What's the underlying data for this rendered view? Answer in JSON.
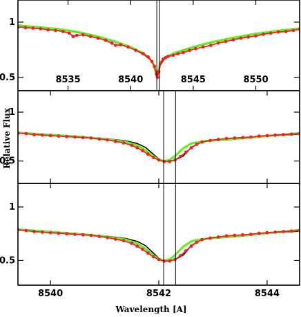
{
  "chart_data": [
    {
      "type": "line",
      "panel": "top",
      "xlim": [
        8531.0,
        8553.5
      ],
      "ylim": [
        0.38,
        1.2
      ],
      "xticks": [
        8535,
        8540,
        8545,
        8550
      ],
      "yticks": [
        0.5,
        1
      ],
      "xtick_labels": [
        "8535",
        "8540",
        "8545",
        "8550"
      ],
      "ytick_labels": [
        "0.5",
        "1"
      ],
      "tick_labels_inside": true,
      "vlines": [
        8542.09,
        8542.31
      ],
      "series": [
        {
          "color": "#000000",
          "style": "line",
          "x": [
            8531.0,
            8532,
            8533,
            8534,
            8535,
            8536,
            8537,
            8538,
            8539,
            8540,
            8541,
            8541.5,
            8541.8,
            8542.0,
            8542.1,
            8542.2,
            8542.4,
            8542.7,
            8543,
            8543.5,
            8544,
            8545,
            8546,
            8547,
            8548,
            8549,
            8550,
            8551,
            8552,
            8553,
            8553.5
          ],
          "y": [
            0.96,
            0.955,
            0.945,
            0.935,
            0.92,
            0.9,
            0.875,
            0.845,
            0.81,
            0.77,
            0.71,
            0.665,
            0.62,
            0.56,
            0.5,
            0.53,
            0.62,
            0.665,
            0.69,
            0.715,
            0.735,
            0.77,
            0.8,
            0.825,
            0.85,
            0.87,
            0.89,
            0.905,
            0.92,
            0.93,
            0.94
          ]
        },
        {
          "color": "#66ee22",
          "style": "line",
          "x": [
            8531.0,
            8532,
            8533,
            8534,
            8535,
            8536,
            8537,
            8538,
            8539,
            8540,
            8541,
            8541.5,
            8541.8,
            8542.0,
            8542.1,
            8542.2,
            8542.4,
            8542.7,
            8543,
            8543.5,
            8544,
            8545,
            8546,
            8547,
            8548,
            8549,
            8550,
            8551,
            8552,
            8553,
            8553.5
          ],
          "y": [
            0.97,
            0.96,
            0.95,
            0.94,
            0.925,
            0.905,
            0.88,
            0.85,
            0.815,
            0.775,
            0.72,
            0.675,
            0.625,
            0.55,
            0.5,
            0.55,
            0.64,
            0.675,
            0.695,
            0.72,
            0.74,
            0.775,
            0.805,
            0.83,
            0.855,
            0.875,
            0.895,
            0.91,
            0.925,
            0.935,
            0.945
          ]
        },
        {
          "color": "#ee2222",
          "style": "line-markers",
          "x": [
            8531.0,
            8531.6,
            8532.2,
            8532.8,
            8533.4,
            8534.0,
            8534.6,
            8535.1,
            8535.4,
            8535.7,
            8536.2,
            8536.8,
            8537.4,
            8538.0,
            8538.5,
            8538.8,
            8539.2,
            8539.8,
            8540.4,
            8541.0,
            8541.4,
            8541.7,
            8541.9,
            8542.05,
            8542.15,
            8542.25,
            8542.4,
            8542.6,
            8542.8,
            8543.0,
            8543.4,
            8543.8,
            8544.2,
            8544.7,
            8545.2,
            8545.8,
            8546.4,
            8547.0,
            8547.6,
            8548.2,
            8548.8,
            8549.4,
            8550.0,
            8550.6,
            8551.2,
            8551.8,
            8552.4,
            8553.0,
            8553.5
          ],
          "y": [
            0.955,
            0.95,
            0.945,
            0.94,
            0.93,
            0.925,
            0.915,
            0.9,
            0.87,
            0.88,
            0.885,
            0.87,
            0.855,
            0.835,
            0.81,
            0.79,
            0.795,
            0.775,
            0.745,
            0.715,
            0.685,
            0.645,
            0.6,
            0.53,
            0.5,
            0.55,
            0.63,
            0.665,
            0.68,
            0.69,
            0.7,
            0.715,
            0.725,
            0.745,
            0.76,
            0.775,
            0.79,
            0.81,
            0.825,
            0.84,
            0.855,
            0.865,
            0.875,
            0.89,
            0.9,
            0.91,
            0.915,
            0.925,
            0.935
          ]
        }
      ]
    },
    {
      "type": "line",
      "panel": "middle",
      "xlim": [
        8539.4,
        8544.6
      ],
      "ylim": [
        0.27,
        1.22
      ],
      "xticks": [
        8540,
        8542,
        8544
      ],
      "yticks": [
        0.5,
        1
      ],
      "ytick_labels": [
        "0.5",
        "1"
      ],
      "vlines": [
        8542.09,
        8542.31
      ],
      "series": [
        {
          "color": "#000000",
          "style": "line",
          "x": [
            8539.4,
            8539.8,
            8540.2,
            8540.6,
            8541.0,
            8541.4,
            8541.6,
            8541.75,
            8541.9,
            8542.0,
            8542.1,
            8542.2,
            8542.3,
            8542.45,
            8542.6,
            8542.8,
            8543.0,
            8543.4,
            8543.8,
            8544.2,
            8544.6
          ],
          "y": [
            0.79,
            0.775,
            0.76,
            0.745,
            0.73,
            0.705,
            0.68,
            0.64,
            0.57,
            0.52,
            0.5,
            0.5,
            0.51,
            0.55,
            0.64,
            0.7,
            0.715,
            0.73,
            0.745,
            0.76,
            0.775
          ]
        },
        {
          "color": "#66ee22",
          "style": "line",
          "x": [
            8539.4,
            8539.8,
            8540.2,
            8540.6,
            8541.0,
            8541.4,
            8541.6,
            8541.75,
            8541.9,
            8542.0,
            8542.1,
            8542.2,
            8542.3,
            8542.45,
            8542.6,
            8542.8,
            8543.0,
            8543.4,
            8543.8,
            8544.2,
            8544.6
          ],
          "y": [
            0.79,
            0.775,
            0.76,
            0.745,
            0.725,
            0.695,
            0.66,
            0.61,
            0.55,
            0.51,
            0.5,
            0.51,
            0.55,
            0.63,
            0.68,
            0.7,
            0.71,
            0.725,
            0.745,
            0.765,
            0.785
          ]
        },
        {
          "color": "#ee2222",
          "style": "line-markers",
          "x": [
            8539.4,
            8539.55,
            8539.7,
            8539.85,
            8540.0,
            8540.15,
            8540.3,
            8540.45,
            8540.6,
            8540.75,
            8540.9,
            8541.05,
            8541.2,
            8541.35,
            8541.5,
            8541.6,
            8541.7,
            8541.8,
            8541.9,
            8542.0,
            8542.1,
            8542.2,
            8542.3,
            8542.4,
            8542.5,
            8542.6,
            8542.7,
            8542.8,
            8542.95,
            8543.1,
            8543.25,
            8543.4,
            8543.55,
            8543.7,
            8543.85,
            8544.0,
            8544.15,
            8544.3,
            8544.45,
            8544.6
          ],
          "y": [
            0.785,
            0.78,
            0.77,
            0.765,
            0.76,
            0.755,
            0.75,
            0.745,
            0.74,
            0.735,
            0.725,
            0.715,
            0.7,
            0.685,
            0.66,
            0.635,
            0.605,
            0.57,
            0.535,
            0.51,
            0.495,
            0.495,
            0.51,
            0.545,
            0.59,
            0.635,
            0.67,
            0.695,
            0.71,
            0.72,
            0.73,
            0.735,
            0.74,
            0.745,
            0.755,
            0.76,
            0.765,
            0.77,
            0.775,
            0.78
          ]
        }
      ]
    },
    {
      "type": "line",
      "panel": "bottom",
      "xlim": [
        8539.4,
        8544.6
      ],
      "ylim": [
        0.27,
        1.22
      ],
      "xticks": [
        8540,
        8542,
        8544
      ],
      "yticks": [
        0.5,
        1
      ],
      "xtick_labels": [
        "8540",
        "8542",
        "8544"
      ],
      "ytick_labels": [
        "0.5",
        "1"
      ],
      "vlines": [
        8542.09,
        8542.31
      ],
      "series": [
        {
          "color": "#000000",
          "style": "line",
          "x": [
            8539.4,
            8539.8,
            8540.2,
            8540.6,
            8541.0,
            8541.4,
            8541.6,
            8541.75,
            8541.9,
            8542.0,
            8542.1,
            8542.2,
            8542.3,
            8542.45,
            8542.6,
            8542.8,
            8543.0,
            8543.4,
            8543.8,
            8544.2,
            8544.6
          ],
          "y": [
            0.79,
            0.775,
            0.76,
            0.745,
            0.73,
            0.705,
            0.68,
            0.64,
            0.57,
            0.52,
            0.5,
            0.5,
            0.51,
            0.55,
            0.64,
            0.7,
            0.715,
            0.73,
            0.745,
            0.76,
            0.775
          ]
        },
        {
          "color": "#66ee22",
          "style": "line",
          "x": [
            8539.4,
            8539.8,
            8540.2,
            8540.6,
            8541.0,
            8541.4,
            8541.6,
            8541.75,
            8541.9,
            8542.0,
            8542.1,
            8542.2,
            8542.3,
            8542.45,
            8542.6,
            8542.8,
            8543.0,
            8543.4,
            8543.8,
            8544.2,
            8544.6
          ],
          "y": [
            0.79,
            0.775,
            0.76,
            0.745,
            0.725,
            0.695,
            0.66,
            0.61,
            0.55,
            0.51,
            0.5,
            0.51,
            0.55,
            0.63,
            0.68,
            0.7,
            0.71,
            0.725,
            0.745,
            0.765,
            0.785
          ]
        },
        {
          "color": "#ee2222",
          "style": "line-markers",
          "x": [
            8539.4,
            8539.55,
            8539.7,
            8539.85,
            8540.0,
            8540.15,
            8540.3,
            8540.45,
            8540.6,
            8540.75,
            8540.9,
            8541.05,
            8541.2,
            8541.35,
            8541.5,
            8541.6,
            8541.7,
            8541.8,
            8541.9,
            8542.0,
            8542.1,
            8542.2,
            8542.3,
            8542.4,
            8542.5,
            8542.6,
            8542.7,
            8542.8,
            8542.95,
            8543.1,
            8543.25,
            8543.4,
            8543.55,
            8543.7,
            8543.85,
            8544.0,
            8544.15,
            8544.3,
            8544.45,
            8544.6
          ],
          "y": [
            0.785,
            0.78,
            0.77,
            0.765,
            0.76,
            0.755,
            0.75,
            0.745,
            0.74,
            0.735,
            0.725,
            0.715,
            0.7,
            0.685,
            0.66,
            0.635,
            0.605,
            0.57,
            0.535,
            0.51,
            0.495,
            0.495,
            0.51,
            0.545,
            0.59,
            0.635,
            0.67,
            0.695,
            0.71,
            0.72,
            0.73,
            0.735,
            0.74,
            0.745,
            0.755,
            0.76,
            0.765,
            0.77,
            0.775,
            0.78
          ]
        }
      ]
    }
  ],
  "ylabel": "Relative Flux",
  "xlabel": "Wavelength [A]"
}
